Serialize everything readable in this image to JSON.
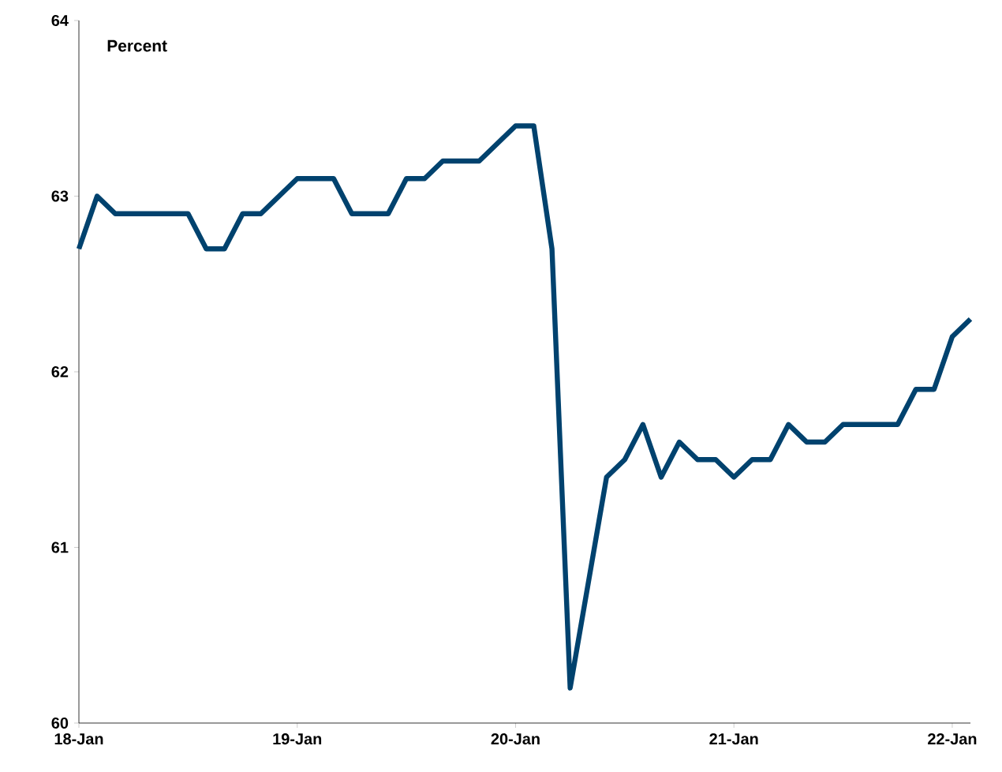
{
  "chart_data": {
    "type": "line",
    "ylabel": "Percent",
    "x": [
      "2018-01",
      "2018-02",
      "2018-03",
      "2018-04",
      "2018-05",
      "2018-06",
      "2018-07",
      "2018-08",
      "2018-09",
      "2018-10",
      "2018-11",
      "2018-12",
      "2019-01",
      "2019-02",
      "2019-03",
      "2019-04",
      "2019-05",
      "2019-06",
      "2019-07",
      "2019-08",
      "2019-09",
      "2019-10",
      "2019-11",
      "2019-12",
      "2020-01",
      "2020-02",
      "2020-03",
      "2020-04",
      "2020-05",
      "2020-06",
      "2020-07",
      "2020-08",
      "2020-09",
      "2020-10",
      "2020-11",
      "2020-12",
      "2021-01",
      "2021-02",
      "2021-03",
      "2021-04",
      "2021-05",
      "2021-06",
      "2021-07",
      "2021-08",
      "2021-09",
      "2021-10",
      "2021-11",
      "2021-12",
      "2022-01",
      "2022-02"
    ],
    "series": [
      {
        "color": "#00426e",
        "values": [
          62.7,
          63.0,
          62.9,
          62.9,
          62.9,
          62.9,
          62.9,
          62.7,
          62.7,
          62.9,
          62.9,
          63.0,
          63.1,
          63.1,
          63.1,
          62.9,
          62.9,
          62.9,
          63.1,
          63.1,
          63.2,
          63.2,
          63.2,
          63.3,
          63.4,
          63.4,
          62.7,
          60.2,
          60.8,
          61.4,
          61.5,
          61.7,
          61.4,
          61.6,
          61.5,
          61.5,
          61.4,
          61.5,
          61.5,
          61.7,
          61.6,
          61.6,
          61.7,
          61.7,
          61.7,
          61.7,
          61.9,
          61.9,
          62.2,
          62.3
        ]
      }
    ],
    "xlim": [
      "2018-01",
      "2022-02"
    ],
    "xticks": [
      {
        "value": "2018-01",
        "label": "18-Jan"
      },
      {
        "value": "2019-01",
        "label": "19-Jan"
      },
      {
        "value": "2020-01",
        "label": "20-Jan"
      },
      {
        "value": "2021-01",
        "label": "21-Jan"
      },
      {
        "value": "2022-01",
        "label": "22-Jan"
      }
    ],
    "ylim": [
      60,
      64
    ],
    "yticks": [
      60,
      61,
      62,
      63,
      64
    ],
    "grid": false,
    "marker": "none",
    "line_style": "solid"
  }
}
